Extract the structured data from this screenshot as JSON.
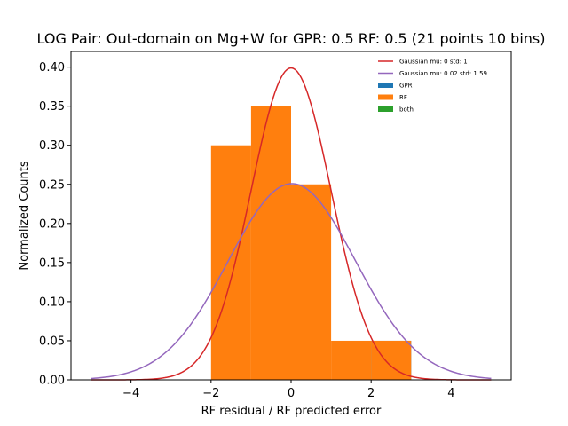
{
  "chart_data": {
    "type": "bar",
    "title": "LOG Pair: Out-domain on Mg+W for GPR: 0.5 RF: 0.5 (21 points 10 bins)",
    "xlabel": "RF residual / RF predicted error",
    "ylabel": "Normalized Counts",
    "xlim": [
      -5.5,
      5.5
    ],
    "ylim": [
      0,
      0.42
    ],
    "xticks": [
      -4,
      -2,
      0,
      2,
      4
    ],
    "xtick_labels": [
      "−4",
      "−2",
      "0",
      "2",
      "4"
    ],
    "yticks": [
      0.0,
      0.05,
      0.1,
      0.15,
      0.2,
      0.25,
      0.3,
      0.35,
      0.4
    ],
    "ytick_labels": [
      "0.00",
      "0.05",
      "0.10",
      "0.15",
      "0.20",
      "0.25",
      "0.30",
      "0.35",
      "0.40"
    ],
    "legend_position": "top-right",
    "series": [
      {
        "name": "GPR",
        "type": "histogram",
        "color": "#1f77b4",
        "bins": [
          {
            "x0": 2,
            "x1": 3,
            "value": 0.05
          }
        ]
      },
      {
        "name": "RF",
        "type": "histogram",
        "color": "#ff7f0e",
        "bins": [
          {
            "x0": -2,
            "x1": -1,
            "value": 0.3
          },
          {
            "x0": -1,
            "x1": 0,
            "value": 0.35
          },
          {
            "x0": 0,
            "x1": 1,
            "value": 0.25
          },
          {
            "x0": 1,
            "x1": 2,
            "value": 0.05
          },
          {
            "x0": 2,
            "x1": 3,
            "value": 0.05
          }
        ]
      },
      {
        "name": "both",
        "type": "histogram",
        "color": "#2ca02c",
        "bins": []
      },
      {
        "name": "Gaussian mu: 0 std: 1",
        "type": "line",
        "color": "#d62728",
        "mu": 0,
        "std": 1,
        "x_range": [
          -5,
          5
        ]
      },
      {
        "name": "Gaussian mu: 0.02 std: 1.59",
        "type": "line",
        "color": "#9467bd",
        "mu": 0.02,
        "std": 1.59,
        "x_range": [
          -5,
          5
        ]
      }
    ],
    "legend_order": [
      "Gaussian mu: 0 std: 1",
      "Gaussian mu: 0.02 std: 1.59",
      "GPR",
      "RF",
      "both"
    ]
  }
}
